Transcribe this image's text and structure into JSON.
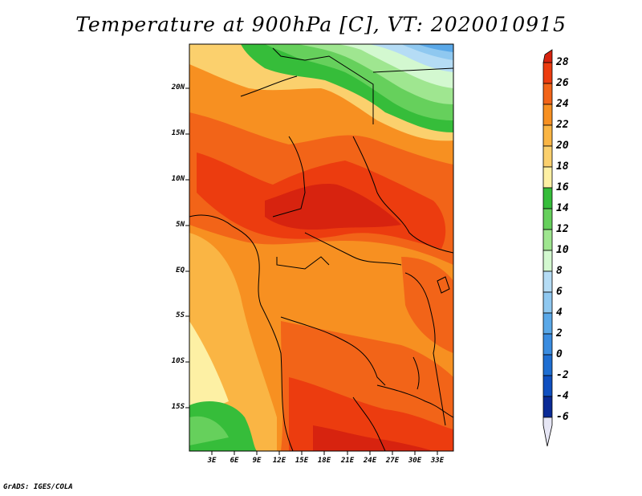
{
  "title": "Temperature at 900hPa [C], VT: 2020010915",
  "credit": "GrADS: IGES/COLA",
  "map": {
    "variable": "Temperature",
    "level": "900hPa",
    "units": "C",
    "valid_time": "2020010915",
    "lat_labels": [
      "20N",
      "15N",
      "10N",
      "5N",
      "EQ",
      "5S",
      "10S",
      "15S"
    ],
    "lon_labels": [
      "3E",
      "6E",
      "9E",
      "12E",
      "15E",
      "18E",
      "21E",
      "24E",
      "27E",
      "30E",
      "33E"
    ]
  },
  "colorbar": {
    "levels": [
      "28",
      "26",
      "24",
      "22",
      "20",
      "18",
      "16",
      "14",
      "12",
      "10",
      "8",
      "6",
      "4",
      "2",
      "0",
      "-2",
      "-4",
      "-6"
    ],
    "colors": {
      "c_above28": "#d7230f",
      "c_26_28": "#ec3c0f",
      "c_24_26": "#f26418",
      "c_22_24": "#f79021",
      "c_20_22": "#fab544",
      "c_18_20": "#fbd06d",
      "c_16_18": "#fdf0a4",
      "c_14_16": "#36bd3a",
      "c_12_14": "#66d05c",
      "c_10_12": "#9fe690",
      "c_8_10": "#d3f8d0",
      "c_6_8": "#b5dcf5",
      "c_4_6": "#8fc8f0",
      "c_2_4": "#5aa8e8",
      "c_0_2": "#3a8ce0",
      "c_m2_0": "#1e6ed2",
      "c_m4_m2": "#0f4fc0",
      "c_m6_m4": "#0a2a96",
      "c_below_m6": "#e6e6f5"
    }
  }
}
